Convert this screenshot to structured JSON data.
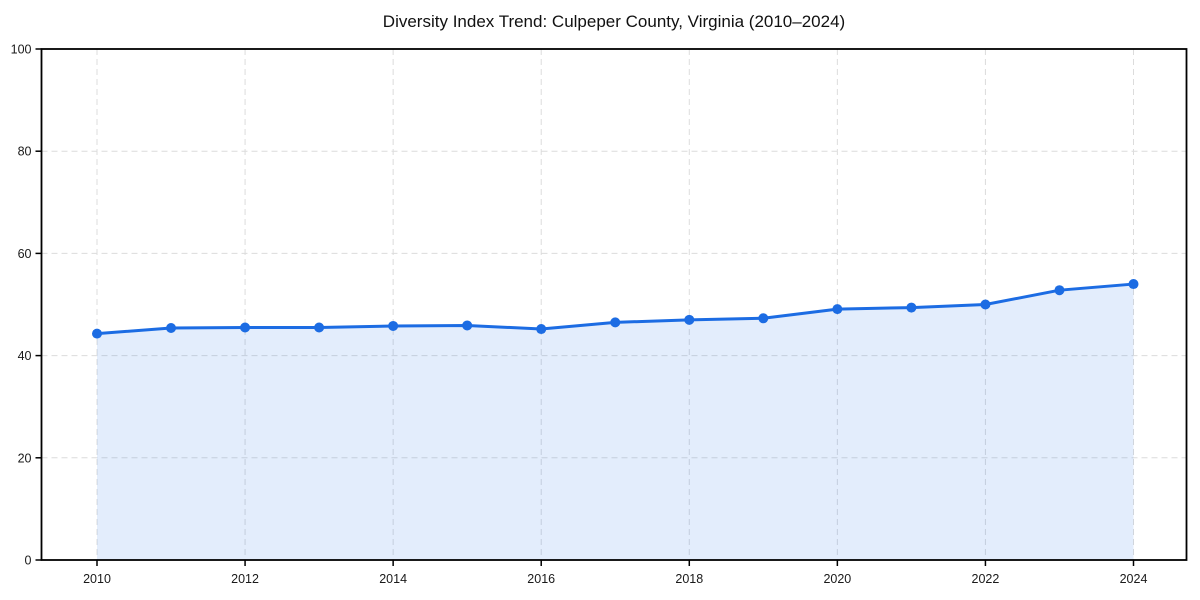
{
  "page": {
    "background": "#ffffff"
  },
  "chart_data": {
    "type": "area",
    "title": "Diversity Index Trend: Culpeper County, Virginia (2010–2024)",
    "x": [
      2010,
      2011,
      2012,
      2013,
      2014,
      2015,
      2016,
      2017,
      2018,
      2019,
      2020,
      2021,
      2022,
      2023,
      2024
    ],
    "series": [
      {
        "name": "Diversity Index",
        "values": [
          44.3,
          45.4,
          45.5,
          45.5,
          45.8,
          45.9,
          45.2,
          46.5,
          47.0,
          47.3,
          49.1,
          49.4,
          50.0,
          52.8,
          54.0
        ]
      }
    ],
    "xlabel": "",
    "ylabel": "",
    "xticks": [
      2010,
      2012,
      2014,
      2016,
      2018,
      2020,
      2022,
      2024
    ],
    "yticks": [
      0,
      20,
      40,
      60,
      80,
      100
    ],
    "ylim": [
      0,
      100
    ],
    "grid": true,
    "grid_style": "dashed",
    "legend": "none",
    "marker": "circle",
    "colors": {
      "line": "#1c6ce3",
      "marker": "#1c6ce3",
      "fill": "#1c6ce3",
      "fill_opacity": "0.12",
      "grid": "#dcdcdc",
      "axis": "#000000",
      "tick_text": "#1a1a1a",
      "title_text": "#111111",
      "background": "#ffffff"
    }
  }
}
